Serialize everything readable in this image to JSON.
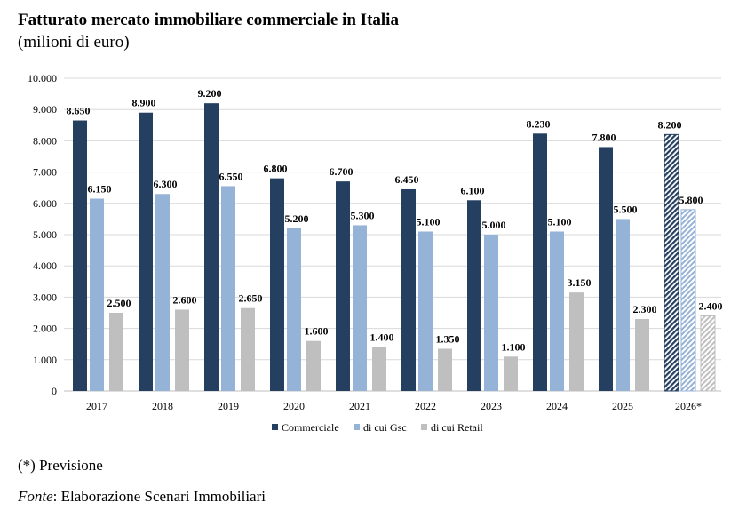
{
  "colors": {
    "commerciale": "#243f60",
    "gsc": "#95b3d7",
    "retail": "#bfbfbf",
    "grid": "#d9d9d9"
  },
  "chart_data": {
    "type": "bar",
    "title": "Fatturato mercato immobiliare commerciale in Italia",
    "subtitle": "(milioni di euro)",
    "categories": [
      "2017",
      "2018",
      "2019",
      "2020",
      "2021",
      "2022",
      "2023",
      "2024",
      "2025",
      "2026*"
    ],
    "series": [
      {
        "name": "Commerciale",
        "values": [
          8650,
          8900,
          9200,
          6800,
          6700,
          6450,
          6100,
          8230,
          7800,
          8200
        ],
        "labels": [
          "8.650",
          "8.900",
          "9.200",
          "6.800",
          "6.700",
          "6.450",
          "6.100",
          "8.230",
          "7.800",
          "8.200"
        ]
      },
      {
        "name": "di cui Gsc",
        "values": [
          6150,
          6300,
          6550,
          5200,
          5300,
          5100,
          5000,
          5100,
          5500,
          5800
        ],
        "labels": [
          "6.150",
          "6.300",
          "6.550",
          "5.200",
          "5.300",
          "5.100",
          "5.000",
          "5.100",
          "5.500",
          "5.800"
        ]
      },
      {
        "name": "di cui Retail",
        "values": [
          2500,
          2600,
          2650,
          1600,
          1400,
          1350,
          1100,
          3150,
          2300,
          2400
        ],
        "labels": [
          "2.500",
          "2.600",
          "2.650",
          "1.600",
          "1.400",
          "1.350",
          "1.100",
          "3.150",
          "2.300",
          "2.400"
        ]
      }
    ],
    "forecast_category": "2026*",
    "ylim": [
      0,
      10000
    ],
    "yticks": [
      0,
      1000,
      2000,
      3000,
      4000,
      5000,
      6000,
      7000,
      8000,
      9000,
      10000
    ],
    "ytick_labels": [
      "0",
      "1.000",
      "2.000",
      "3.000",
      "4.000",
      "5.000",
      "6.000",
      "7.000",
      "8.000",
      "9.000",
      "10.000"
    ],
    "grid": true,
    "legend": "bottom",
    "xlabel": "",
    "ylabel": ""
  },
  "footnote": "(*) Previsione",
  "source_label": "Fonte",
  "source_text": ": Elaborazione Scenari Immobiliari"
}
